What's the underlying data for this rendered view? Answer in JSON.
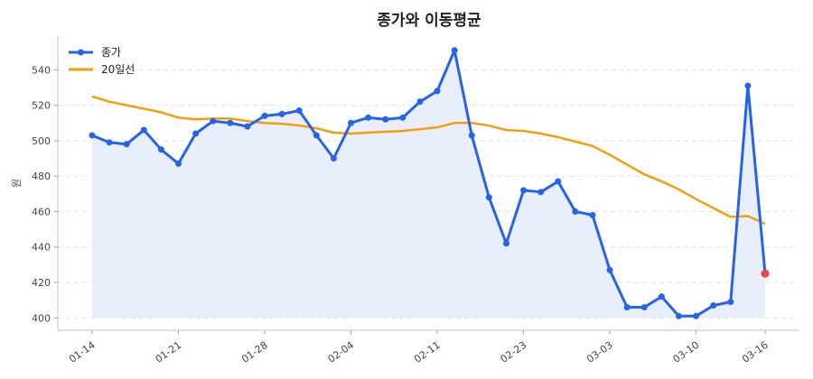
{
  "chart_data": {
    "type": "line",
    "title": "종가와 이동평균",
    "xlabel": "",
    "ylabel": "원",
    "x_tick_labels": [
      {
        "index": 0,
        "label": "01-14"
      },
      {
        "index": 5,
        "label": "01-21"
      },
      {
        "index": 10,
        "label": "01-28"
      },
      {
        "index": 15,
        "label": "02-04"
      },
      {
        "index": 20,
        "label": "02-11"
      },
      {
        "index": 25,
        "label": "02-23"
      },
      {
        "index": 30,
        "label": "03-03"
      },
      {
        "index": 35,
        "label": "03-10"
      },
      {
        "index": 39,
        "label": "03-16"
      }
    ],
    "y_ticks": [
      400,
      420,
      440,
      460,
      480,
      500,
      520,
      540
    ],
    "ylim": [
      393,
      559
    ],
    "grid": "horizontal dashed",
    "legend": "top-left",
    "series": [
      {
        "name": "종가",
        "color": "#2563eb",
        "markers": true,
        "fill_color": "#e8eefb",
        "last_point_color": "#ef4444",
        "values": [
          503,
          499,
          498,
          506,
          495,
          487,
          504,
          511,
          510,
          508,
          514,
          515,
          517,
          503,
          490,
          510,
          513,
          512,
          513,
          522,
          528,
          551,
          503,
          468,
          442,
          472,
          471,
          477,
          460,
          458,
          427,
          406,
          406,
          412,
          401,
          401,
          407,
          409,
          531,
          425
        ]
      },
      {
        "name": "20일선",
        "color": "#f59e0b",
        "markers": false,
        "values": [
          525,
          522,
          520,
          518,
          516,
          513,
          512,
          512.5,
          512.5,
          511,
          510,
          509.5,
          508.5,
          507,
          504.5,
          504,
          504.5,
          505,
          505.5,
          506.5,
          507.5,
          510,
          510,
          508.5,
          506,
          505.5,
          504,
          502,
          499.5,
          497,
          492,
          486.5,
          481,
          477,
          472.5,
          467,
          462,
          457,
          457.5,
          453
        ]
      }
    ]
  }
}
